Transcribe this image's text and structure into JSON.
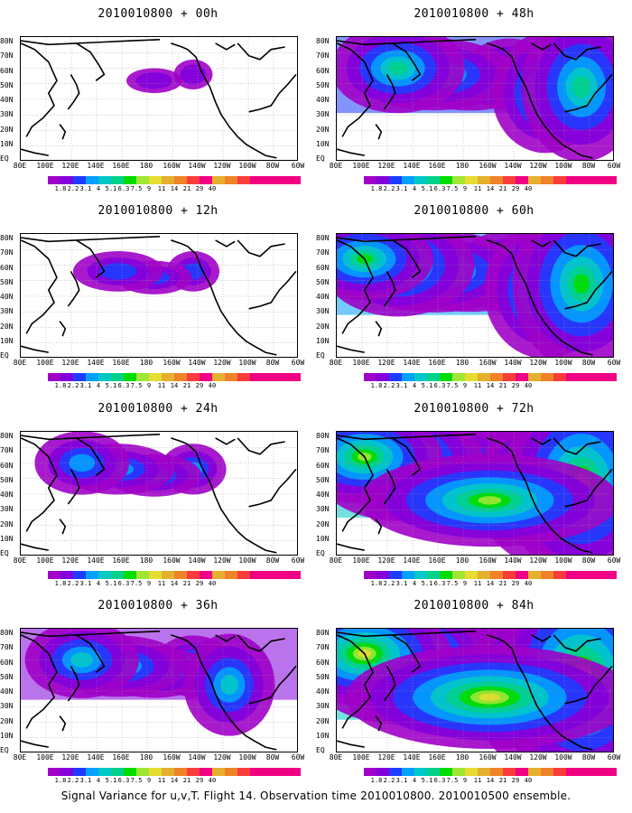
{
  "panels": [
    {
      "title": "2010010800 + 00h",
      "intensity": 0
    },
    {
      "title": "2010010800 + 48h",
      "intensity": 4
    },
    {
      "title": "2010010800 + 12h",
      "intensity": 1
    },
    {
      "title": "2010010800 + 60h",
      "intensity": 5
    },
    {
      "title": "2010010800 + 24h",
      "intensity": 2
    },
    {
      "title": "2010010800 + 72h",
      "intensity": 6
    },
    {
      "title": "2010010800 + 36h",
      "intensity": 3
    },
    {
      "title": "2010010800 + 84h",
      "intensity": 7
    }
  ],
  "lat_labels": [
    "80N",
    "70N",
    "60N",
    "50N",
    "40N",
    "30N",
    "20N",
    "10N",
    "EQ"
  ],
  "lon_labels": [
    "80E",
    "100E",
    "120E",
    "140E",
    "160E",
    "180",
    "160W",
    "140W",
    "120W",
    "100W",
    "80W",
    "60W"
  ],
  "colorbar": {
    "labels": [
      "1.8",
      "2.2",
      "3.1",
      "4",
      "5.1",
      "6.3",
      "7.5",
      "9",
      "11",
      "14",
      "21",
      "29",
      "40"
    ],
    "colors": [
      "#a000c8",
      "#8200dc",
      "#1e3cff",
      "#00a0ff",
      "#00c8c8",
      "#00d28c",
      "#00dc00",
      "#a0e632",
      "#e6dc32",
      "#e6af2d",
      "#f08228",
      "#fa3c3c",
      "#f00082"
    ]
  },
  "caption": "Signal Variance for u,v,T. Flight 14. Observation time 2010010800. 2010010500 ensemble."
}
